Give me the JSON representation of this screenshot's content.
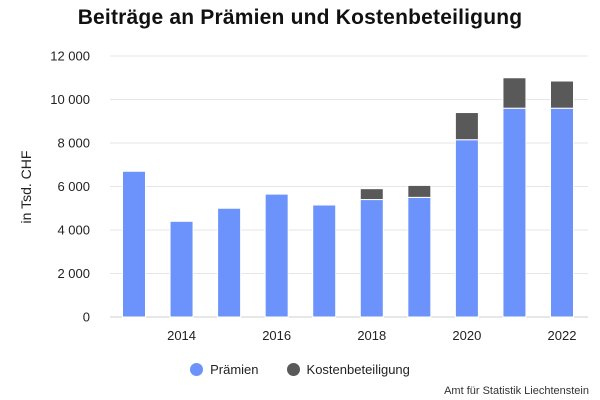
{
  "chart_data": {
    "type": "bar",
    "stacked": true,
    "title": "Beiträge an Prämien und Kostenbeteiligung",
    "ylabel": "in Tsd. CHF",
    "xlabel": "",
    "x": [
      2013,
      2014,
      2015,
      2016,
      2017,
      2018,
      2019,
      2020,
      2021,
      2022
    ],
    "x_tick_labels": [
      "2014",
      "2016",
      "2018",
      "2020",
      "2022"
    ],
    "x_tick_values": [
      2014,
      2016,
      2018,
      2020,
      2022
    ],
    "y_tick_labels": [
      "0",
      "2 000",
      "4 000",
      "6 000",
      "8 000",
      "10 000",
      "12 000"
    ],
    "y_tick_values": [
      0,
      2000,
      4000,
      6000,
      8000,
      10000,
      12000
    ],
    "ylim": [
      0,
      12000
    ],
    "grid": true,
    "legend_position": "bottom",
    "series": [
      {
        "name": "Prämien",
        "color": "#6b93fb",
        "values": [
          6700,
          4400,
          5000,
          5650,
          5150,
          5400,
          5500,
          8150,
          9600,
          9600
        ]
      },
      {
        "name": "Kostenbeteiligung",
        "color": "#595959",
        "values": [
          0,
          0,
          0,
          0,
          0,
          500,
          550,
          1250,
          1400,
          1250
        ]
      }
    ],
    "source_note": "Amt für Statistik Liechtenstein"
  }
}
